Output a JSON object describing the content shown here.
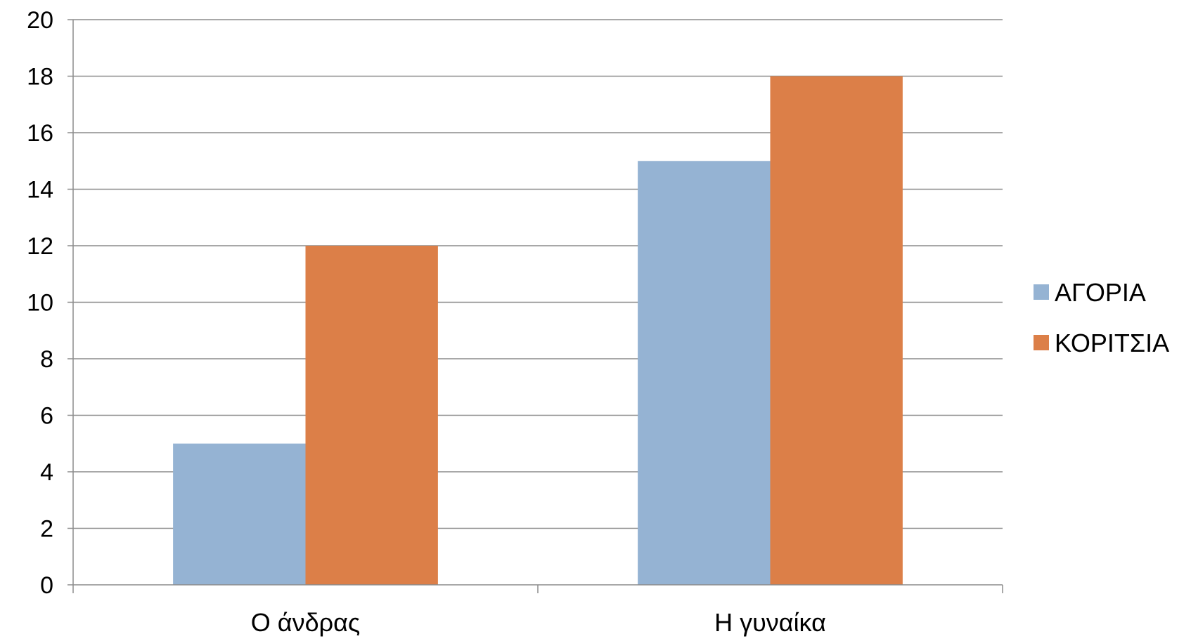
{
  "chart_data": {
    "type": "bar",
    "categories": [
      "Ο άνδρας",
      "Η γυναίκα"
    ],
    "series": [
      {
        "name": "ΑΓΟΡΙΑ",
        "values": [
          5,
          15
        ],
        "color": "#95B3D3"
      },
      {
        "name": "ΚΟΡΙΤΣΙΑ",
        "values": [
          12,
          18
        ],
        "color": "#DC7F48"
      }
    ],
    "title": "",
    "xlabel": "",
    "ylabel": "",
    "ylim": [
      0,
      20
    ],
    "yticks": [
      0,
      2,
      4,
      6,
      8,
      10,
      12,
      14,
      16,
      18,
      20
    ],
    "grid": true,
    "legend_position": "right",
    "gridline_color": "#8C8C8C",
    "axis_color": "#8C8C8C"
  }
}
